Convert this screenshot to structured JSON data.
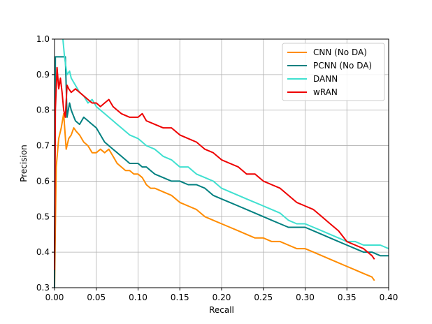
{
  "chart_data": {
    "type": "line",
    "title": "",
    "xlabel": "Recall",
    "ylabel": "Precision",
    "xlim": [
      0.0,
      0.4
    ],
    "ylim": [
      0.3,
      1.0
    ],
    "xticks": [
      "0.00",
      "0.05",
      "0.10",
      "0.15",
      "0.20",
      "0.25",
      "0.30",
      "0.35",
      "0.40"
    ],
    "yticks": [
      "0.3",
      "0.4",
      "0.5",
      "0.6",
      "0.7",
      "0.8",
      "0.9",
      "1.0"
    ],
    "grid": true,
    "legend_position": "top-right",
    "series": [
      {
        "name": "CNN (No DA)",
        "color": "#ff8c00",
        "points": [
          [
            0.0,
            0.3
          ],
          [
            0.002,
            0.64
          ],
          [
            0.005,
            0.72
          ],
          [
            0.008,
            0.75
          ],
          [
            0.011,
            0.79
          ],
          [
            0.014,
            0.69
          ],
          [
            0.017,
            0.72
          ],
          [
            0.02,
            0.73
          ],
          [
            0.023,
            0.75
          ],
          [
            0.026,
            0.74
          ],
          [
            0.03,
            0.73
          ],
          [
            0.035,
            0.71
          ],
          [
            0.04,
            0.7
          ],
          [
            0.045,
            0.68
          ],
          [
            0.05,
            0.68
          ],
          [
            0.055,
            0.69
          ],
          [
            0.06,
            0.68
          ],
          [
            0.065,
            0.69
          ],
          [
            0.07,
            0.67
          ],
          [
            0.075,
            0.65
          ],
          [
            0.08,
            0.64
          ],
          [
            0.085,
            0.63
          ],
          [
            0.09,
            0.63
          ],
          [
            0.095,
            0.62
          ],
          [
            0.1,
            0.62
          ],
          [
            0.105,
            0.61
          ],
          [
            0.11,
            0.59
          ],
          [
            0.115,
            0.58
          ],
          [
            0.12,
            0.58
          ],
          [
            0.13,
            0.57
          ],
          [
            0.14,
            0.56
          ],
          [
            0.15,
            0.54
          ],
          [
            0.16,
            0.53
          ],
          [
            0.17,
            0.52
          ],
          [
            0.18,
            0.5
          ],
          [
            0.19,
            0.49
          ],
          [
            0.2,
            0.48
          ],
          [
            0.21,
            0.47
          ],
          [
            0.22,
            0.46
          ],
          [
            0.23,
            0.45
          ],
          [
            0.24,
            0.44
          ],
          [
            0.25,
            0.44
          ],
          [
            0.26,
            0.43
          ],
          [
            0.27,
            0.43
          ],
          [
            0.28,
            0.42
          ],
          [
            0.29,
            0.41
          ],
          [
            0.3,
            0.41
          ],
          [
            0.31,
            0.4
          ],
          [
            0.32,
            0.39
          ],
          [
            0.33,
            0.38
          ],
          [
            0.34,
            0.37
          ],
          [
            0.35,
            0.36
          ],
          [
            0.36,
            0.35
          ],
          [
            0.37,
            0.34
          ],
          [
            0.38,
            0.33
          ],
          [
            0.383,
            0.32
          ]
        ]
      },
      {
        "name": "PCNN (No DA)",
        "color": "#008080",
        "points": [
          [
            0.0,
            0.3
          ],
          [
            0.001,
            0.95
          ],
          [
            0.005,
            0.95
          ],
          [
            0.01,
            0.95
          ],
          [
            0.013,
            0.95
          ],
          [
            0.015,
            0.78
          ],
          [
            0.018,
            0.82
          ],
          [
            0.02,
            0.8
          ],
          [
            0.025,
            0.77
          ],
          [
            0.03,
            0.76
          ],
          [
            0.035,
            0.78
          ],
          [
            0.04,
            0.77
          ],
          [
            0.045,
            0.76
          ],
          [
            0.05,
            0.75
          ],
          [
            0.055,
            0.73
          ],
          [
            0.06,
            0.71
          ],
          [
            0.065,
            0.7
          ],
          [
            0.07,
            0.69
          ],
          [
            0.075,
            0.68
          ],
          [
            0.08,
            0.67
          ],
          [
            0.085,
            0.66
          ],
          [
            0.09,
            0.65
          ],
          [
            0.1,
            0.65
          ],
          [
            0.105,
            0.64
          ],
          [
            0.11,
            0.64
          ],
          [
            0.115,
            0.63
          ],
          [
            0.12,
            0.62
          ],
          [
            0.13,
            0.61
          ],
          [
            0.14,
            0.6
          ],
          [
            0.15,
            0.6
          ],
          [
            0.16,
            0.59
          ],
          [
            0.17,
            0.59
          ],
          [
            0.18,
            0.58
          ],
          [
            0.19,
            0.56
          ],
          [
            0.2,
            0.55
          ],
          [
            0.21,
            0.54
          ],
          [
            0.22,
            0.53
          ],
          [
            0.23,
            0.52
          ],
          [
            0.24,
            0.51
          ],
          [
            0.25,
            0.5
          ],
          [
            0.26,
            0.49
          ],
          [
            0.27,
            0.48
          ],
          [
            0.28,
            0.47
          ],
          [
            0.29,
            0.47
          ],
          [
            0.3,
            0.47
          ],
          [
            0.31,
            0.46
          ],
          [
            0.32,
            0.45
          ],
          [
            0.33,
            0.44
          ],
          [
            0.34,
            0.43
          ],
          [
            0.35,
            0.42
          ],
          [
            0.36,
            0.41
          ],
          [
            0.37,
            0.4
          ],
          [
            0.38,
            0.4
          ],
          [
            0.39,
            0.39
          ],
          [
            0.4,
            0.39
          ]
        ]
      },
      {
        "name": "DANN",
        "color": "#40e0d0",
        "points": [
          [
            0.01,
            1.0
          ],
          [
            0.012,
            0.95
          ],
          [
            0.015,
            0.9
          ],
          [
            0.018,
            0.91
          ],
          [
            0.02,
            0.89
          ],
          [
            0.025,
            0.87
          ],
          [
            0.03,
            0.85
          ],
          [
            0.035,
            0.84
          ],
          [
            0.04,
            0.82
          ],
          [
            0.045,
            0.83
          ],
          [
            0.05,
            0.81
          ],
          [
            0.055,
            0.8
          ],
          [
            0.06,
            0.79
          ],
          [
            0.065,
            0.78
          ],
          [
            0.07,
            0.77
          ],
          [
            0.075,
            0.76
          ],
          [
            0.08,
            0.75
          ],
          [
            0.085,
            0.74
          ],
          [
            0.09,
            0.73
          ],
          [
            0.1,
            0.72
          ],
          [
            0.105,
            0.71
          ],
          [
            0.11,
            0.7
          ],
          [
            0.12,
            0.69
          ],
          [
            0.125,
            0.68
          ],
          [
            0.13,
            0.67
          ],
          [
            0.14,
            0.66
          ],
          [
            0.15,
            0.64
          ],
          [
            0.16,
            0.64
          ],
          [
            0.17,
            0.62
          ],
          [
            0.18,
            0.61
          ],
          [
            0.19,
            0.6
          ],
          [
            0.2,
            0.58
          ],
          [
            0.21,
            0.57
          ],
          [
            0.22,
            0.56
          ],
          [
            0.23,
            0.55
          ],
          [
            0.24,
            0.54
          ],
          [
            0.25,
            0.53
          ],
          [
            0.26,
            0.52
          ],
          [
            0.27,
            0.51
          ],
          [
            0.28,
            0.49
          ],
          [
            0.29,
            0.48
          ],
          [
            0.3,
            0.48
          ],
          [
            0.31,
            0.47
          ],
          [
            0.32,
            0.46
          ],
          [
            0.33,
            0.45
          ],
          [
            0.34,
            0.44
          ],
          [
            0.35,
            0.43
          ],
          [
            0.36,
            0.43
          ],
          [
            0.37,
            0.42
          ],
          [
            0.38,
            0.42
          ],
          [
            0.39,
            0.42
          ],
          [
            0.4,
            0.41
          ]
        ]
      },
      {
        "name": "wRAN",
        "color": "#ee0000",
        "points": [
          [
            0.0,
            0.35
          ],
          [
            0.001,
            0.8
          ],
          [
            0.003,
            0.92
          ],
          [
            0.005,
            0.86
          ],
          [
            0.007,
            0.89
          ],
          [
            0.009,
            0.85
          ],
          [
            0.011,
            0.8
          ],
          [
            0.013,
            0.78
          ],
          [
            0.015,
            0.87
          ],
          [
            0.017,
            0.86
          ],
          [
            0.02,
            0.85
          ],
          [
            0.025,
            0.86
          ],
          [
            0.03,
            0.85
          ],
          [
            0.035,
            0.84
          ],
          [
            0.04,
            0.83
          ],
          [
            0.045,
            0.82
          ],
          [
            0.05,
            0.82
          ],
          [
            0.055,
            0.81
          ],
          [
            0.06,
            0.82
          ],
          [
            0.065,
            0.83
          ],
          [
            0.07,
            0.81
          ],
          [
            0.075,
            0.8
          ],
          [
            0.08,
            0.79
          ],
          [
            0.09,
            0.78
          ],
          [
            0.1,
            0.78
          ],
          [
            0.105,
            0.79
          ],
          [
            0.11,
            0.77
          ],
          [
            0.12,
            0.76
          ],
          [
            0.13,
            0.75
          ],
          [
            0.14,
            0.75
          ],
          [
            0.15,
            0.73
          ],
          [
            0.16,
            0.72
          ],
          [
            0.17,
            0.71
          ],
          [
            0.18,
            0.69
          ],
          [
            0.19,
            0.68
          ],
          [
            0.2,
            0.66
          ],
          [
            0.21,
            0.65
          ],
          [
            0.22,
            0.64
          ],
          [
            0.23,
            0.62
          ],
          [
            0.24,
            0.62
          ],
          [
            0.25,
            0.6
          ],
          [
            0.26,
            0.59
          ],
          [
            0.27,
            0.58
          ],
          [
            0.28,
            0.56
          ],
          [
            0.29,
            0.54
          ],
          [
            0.3,
            0.53
          ],
          [
            0.31,
            0.52
          ],
          [
            0.32,
            0.5
          ],
          [
            0.33,
            0.48
          ],
          [
            0.34,
            0.46
          ],
          [
            0.35,
            0.43
          ],
          [
            0.36,
            0.42
          ],
          [
            0.37,
            0.41
          ],
          [
            0.38,
            0.39
          ],
          [
            0.383,
            0.38
          ]
        ]
      }
    ]
  }
}
